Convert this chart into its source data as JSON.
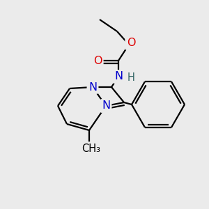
{
  "bg_color": "#ebebeb",
  "atom_colors": {
    "C": "#000000",
    "N": "#0000cc",
    "O": "#dd0000",
    "H": "#336666"
  },
  "bond_color": "#000000",
  "bond_width": 1.6,
  "font_size": 11.5,
  "xlim": [
    0,
    300
  ],
  "ylim": [
    0,
    300
  ]
}
